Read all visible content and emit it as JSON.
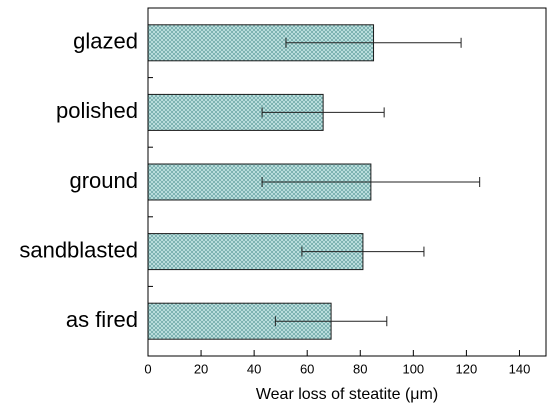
{
  "chart_data": {
    "type": "barh",
    "categories": [
      "glazed",
      "polished",
      "ground",
      "sandblasted",
      "as fired"
    ],
    "values": [
      85,
      66,
      84,
      81,
      69
    ],
    "errors": [
      33,
      23,
      41,
      23,
      21
    ],
    "color": "#9fd0cf",
    "x_label": "Wear loss of steatite (μm)",
    "xlim": [
      0,
      150
    ],
    "xticks": [
      0,
      20,
      40,
      60,
      80,
      100,
      120,
      140
    ]
  }
}
